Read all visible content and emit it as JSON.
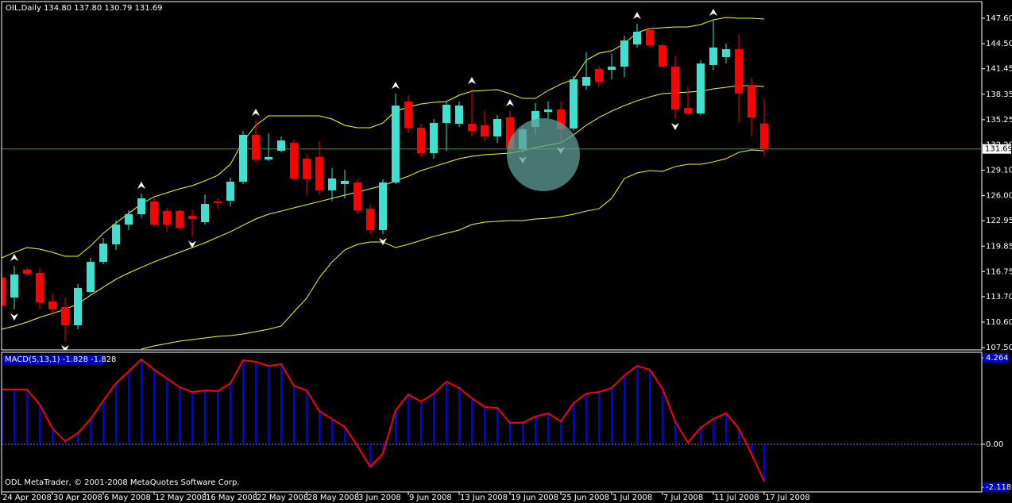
{
  "chart_data": {
    "type": "candlestick",
    "title": "OIL,Daily  134.80 137.80 130.79 131.69",
    "categories": [
      "24 Apr 2008",
      null,
      null,
      null,
      "30 Apr 2008",
      null,
      null,
      null,
      "6 May 2008",
      null,
      null,
      null,
      "12 May 2008",
      null,
      null,
      null,
      "16 May 2008",
      null,
      null,
      null,
      "22 May 2008",
      null,
      null,
      null,
      "28 May 2008",
      null,
      null,
      null,
      "3 Jun 2008",
      null,
      null,
      null,
      "9 Jun 2008",
      null,
      null,
      null,
      "13 Jun 2008",
      null,
      null,
      null,
      "19 Jun 2008",
      null,
      null,
      null,
      "25 Jun 2008",
      null,
      null,
      null,
      "1 Jul 2008",
      null,
      null,
      null,
      "7 Jul 2008",
      null,
      null,
      null,
      "11 Jul 2008",
      null,
      null,
      null,
      "17 Jul 2008"
    ],
    "open": [
      116.01,
      113.6,
      116.98,
      116.59,
      113.11,
      112.44,
      110.22,
      114.27,
      117.94,
      120.07,
      122.48,
      123.74,
      125.28,
      124.12,
      124.12,
      123.55,
      122.77,
      125.28,
      125.38,
      127.7,
      133.4,
      130.41,
      131.47,
      132.43,
      130.5,
      130.7,
      126.64,
      127.41,
      127.6,
      124.42,
      121.81,
      127.6,
      137.46,
      134.27,
      131.18,
      134.85,
      134.75,
      134.75,
      134.56,
      133.21,
      135.52,
      131.66,
      134.37,
      136.2,
      136.49,
      134.17,
      139.39,
      141.42,
      141.32,
      141.71,
      144.41,
      146.15,
      144.32,
      141.71,
      136.68,
      136.01,
      141.9,
      142.87,
      143.83,
      139.49,
      134.8
    ],
    "high": [
      116.5,
      117.46,
      117.27,
      117.17,
      114.08,
      113.6,
      115.24,
      118.43,
      120.84,
      122.97,
      124.22,
      126.25,
      125.67,
      124.51,
      124.32,
      124.32,
      126.15,
      125.67,
      128.18,
      133.88,
      135.14,
      133.59,
      133.21,
      132.82,
      130.98,
      132.63,
      129.34,
      129.15,
      127.99,
      124.9,
      127.99,
      138.42,
      138.23,
      134.75,
      135.33,
      137.55,
      137.46,
      139.0,
      136.3,
      135.81,
      136.3,
      134.56,
      137.26,
      137.46,
      137.46,
      140.55,
      143.45,
      141.8,
      143.25,
      145.47,
      146.92,
      146.44,
      144.51,
      143.06,
      139.2,
      142.48,
      147.31,
      144.51,
      145.57,
      140.35,
      137.8
    ],
    "low": [
      112.15,
      112.15,
      116.2,
      112.15,
      111.37,
      108.28,
      109.73,
      114.08,
      117.65,
      119.39,
      121.81,
      123.25,
      122.19,
      121.61,
      121.81,
      120.98,
      122.48,
      124.41,
      124.7,
      127.41,
      130.02,
      130.21,
      131.27,
      127.8,
      126.06,
      126.06,
      125.38,
      125.67,
      123.74,
      121.32,
      121.32,
      127.41,
      133.59,
      130.7,
      130.5,
      131.47,
      134.37,
      133.21,
      132.63,
      132.43,
      131.27,
      131.27,
      133.4,
      135.33,
      132.43,
      133.88,
      138.9,
      139.2,
      140.16,
      140.45,
      144.03,
      144.03,
      141.51,
      135.33,
      135.81,
      135.81,
      141.32,
      142.09,
      134.85,
      133.21,
      130.79
    ],
    "close": [
      112.63,
      116.4,
      116.49,
      113.02,
      112.15,
      110.22,
      114.76,
      117.94,
      120.16,
      122.48,
      123.74,
      125.67,
      122.48,
      122.48,
      122.1,
      123.16,
      124.99,
      125.09,
      127.7,
      133.4,
      130.41,
      130.7,
      132.72,
      128.09,
      127.99,
      126.64,
      128.09,
      127.8,
      124.22,
      121.81,
      127.6,
      136.97,
      134.27,
      131.18,
      134.85,
      137.07,
      136.97,
      133.88,
      133.21,
      135.33,
      131.66,
      134.08,
      136.3,
      136.49,
      134.08,
      140.16,
      140.45,
      139.87,
      141.71,
      144.9,
      145.96,
      144.32,
      141.71,
      136.49,
      136.01,
      142.09,
      144.03,
      143.83,
      138.42,
      135.52,
      131.69
    ],
    "colors": {
      "up": "#40e0d0",
      "down": "#ff0000",
      "wick_up": "#40e0d0",
      "wick_down": "#ff0000"
    },
    "ylim": [
      107.22,
      149.63
    ],
    "yticks": [
      {
        "value": 147.6,
        "label": "147.60"
      },
      {
        "value": 144.5,
        "label": "144.50"
      },
      141.45,
      138.35,
      135.25,
      {
        "value": 132.2,
        "label": "132.20"
      },
      {
        "value": 129.1,
        "label": "129.10"
      },
      {
        "value": 126,
        "label": "126.00"
      },
      122.95,
      119.85,
      116.75,
      {
        "value": 113.7,
        "label": "113.70"
      },
      {
        "value": 110.6,
        "label": "110.60"
      },
      {
        "value": 107.5,
        "label": "107.50"
      }
    ],
    "bands": [
      {
        "color": "#ffff00",
        "values": [
          118.42,
          119.1,
          119.68,
          119.49,
          119.1,
          118.62,
          118.62,
          119.87,
          121.42,
          122.68,
          123.84,
          125.0,
          125.86,
          126.35,
          126.83,
          127.22,
          127.8,
          128.47,
          129.82,
          132.63,
          134.56,
          135.72,
          135.72,
          135.72,
          135.72,
          135.72,
          135.33,
          134.56,
          134.27,
          134.27,
          134.85,
          136.3,
          136.78,
          137.17,
          137.36,
          137.46,
          138.23,
          138.71,
          138.81,
          138.91,
          138.42,
          137.84,
          137.84,
          138.81,
          139.58,
          140.16,
          142.48,
          143.35,
          143.64,
          144.51,
          145.86,
          146.34,
          146.44,
          146.54,
          146.54,
          146.83,
          147.41,
          147.7,
          147.6,
          147.6,
          147.5
        ]
      },
      {
        "color": "#ffff00",
        "values": [
          109.73,
          110.12,
          110.6,
          111.18,
          111.66,
          112.15,
          112.82,
          113.88,
          114.85,
          115.82,
          116.59,
          117.27,
          117.94,
          118.52,
          119.1,
          119.68,
          120.26,
          120.94,
          121.61,
          122.39,
          123.16,
          123.74,
          124.12,
          124.51,
          124.9,
          125.28,
          125.67,
          126.06,
          126.44,
          126.83,
          127.22,
          127.8,
          128.37,
          129.05,
          129.53,
          130.02,
          130.5,
          130.79,
          130.98,
          131.08,
          131.18,
          131.47,
          131.85,
          132.14,
          132.43,
          133.4,
          134.56,
          135.52,
          136.3,
          136.97,
          137.55,
          138.03,
          138.42,
          138.52,
          138.61,
          138.71,
          139.0,
          139.2,
          139.39,
          139.39,
          139.29
        ]
      },
      {
        "color": "#ffff00",
        "values": [
          null,
          null,
          null,
          null,
          null,
          null,
          null,
          null,
          null,
          null,
          null,
          107.32,
          107.7,
          107.99,
          108.28,
          108.48,
          108.67,
          108.86,
          108.96,
          109.15,
          109.44,
          109.73,
          110.12,
          111.86,
          113.5,
          116.01,
          117.94,
          119.39,
          120.07,
          120.36,
          120.36,
          119.68,
          120.07,
          120.55,
          121.03,
          121.42,
          121.81,
          122.48,
          122.77,
          122.87,
          122.97,
          122.97,
          123.16,
          123.26,
          123.45,
          123.74,
          124.12,
          124.41,
          125.67,
          128.09,
          128.76,
          129.05,
          128.96,
          129.53,
          129.82,
          129.82,
          130.11,
          130.5,
          131.27,
          131.56,
          131.47
        ]
      }
    ],
    "bid_line": 131.69,
    "bid_color": "#00c000",
    "fractal_color": "#ffffff",
    "fractal_up": [
      null,
      117.46,
      null,
      null,
      null,
      null,
      null,
      null,
      null,
      null,
      null,
      126.25,
      null,
      null,
      null,
      null,
      null,
      null,
      null,
      null,
      135.14,
      null,
      null,
      null,
      null,
      null,
      null,
      null,
      null,
      null,
      null,
      138.42,
      null,
      null,
      null,
      null,
      null,
      139.0,
      null,
      null,
      136.3,
      null,
      null,
      null,
      null,
      null,
      null,
      null,
      null,
      null,
      146.92,
      null,
      null,
      null,
      null,
      null,
      147.31,
      null,
      null,
      null,
      null
    ],
    "fractal_down": [
      null,
      112.15,
      null,
      null,
      null,
      108.28,
      null,
      null,
      null,
      null,
      null,
      null,
      null,
      null,
      null,
      120.98,
      null,
      null,
      null,
      null,
      null,
      null,
      null,
      null,
      null,
      null,
      null,
      null,
      null,
      null,
      121.32,
      null,
      null,
      null,
      null,
      null,
      null,
      null,
      null,
      null,
      null,
      131.27,
      null,
      null,
      132.43,
      null,
      null,
      null,
      null,
      null,
      null,
      null,
      null,
      135.33,
      null,
      null,
      null,
      null,
      null,
      null,
      null
    ],
    "indicator": {
      "type": "macd",
      "title": "MACD(5,13,1) -1.828 -1.828",
      "color": "#0000ff",
      "line_color": "#ff0000",
      "values": [
        2.7,
        2.7,
        2.7,
        1.96,
        0.78,
        0.16,
        0.55,
        1.25,
        2.15,
        3.01,
        3.6,
        4.19,
        3.68,
        3.25,
        2.82,
        2.58,
        2.66,
        2.62,
        3.01,
        4.15,
        4.07,
        3.87,
        3.95,
        2.89,
        2.66,
        1.64,
        1.25,
        0.86,
        -0.08,
        -1.1,
        -0.47,
        1.68,
        2.46,
        2.11,
        2.5,
        3.09,
        2.78,
        2.27,
        1.84,
        1.8,
        1.06,
        1.06,
        1.37,
        1.53,
        1.13,
        2.03,
        2.5,
        2.58,
        2.78,
        3.4,
        3.87,
        3.68,
        2.74,
        1.13,
        0.08,
        0.82,
        1.25,
        1.53,
        0.78,
        -0.47,
        -1.828
      ],
      "ylim": [
        -2.347,
        4.538
      ],
      "yticks": [
        4.264,
        {
          "value": 0,
          "label": "0.00"
        },
        -2.118
      ]
    }
  },
  "footer": "ODL MetaTrader, © 2001-2008 MetaQuotes Software Corp."
}
